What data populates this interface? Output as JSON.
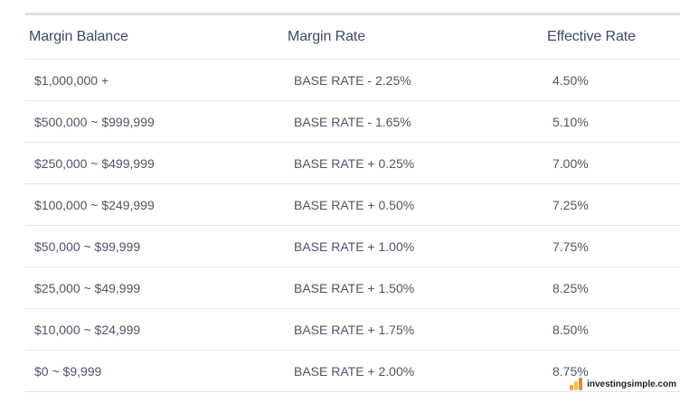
{
  "table": {
    "headers": [
      "Margin Balance",
      "Margin Rate",
      "Effective Rate"
    ],
    "rows": [
      {
        "balance": "$1,000,000 +",
        "margin_rate": "BASE RATE - 2.25%",
        "effective_rate": "4.50%"
      },
      {
        "balance": "$500,000 ~ $999,999",
        "margin_rate": "BASE RATE - 1.65%",
        "effective_rate": "5.10%"
      },
      {
        "balance": "$250,000 ~ $499,999",
        "margin_rate": "BASE RATE + 0.25%",
        "effective_rate": "7.00%"
      },
      {
        "balance": "$100,000 ~ $249,999",
        "margin_rate": "BASE RATE + 0.50%",
        "effective_rate": "7.25%"
      },
      {
        "balance": "$50,000 ~ $99,999",
        "margin_rate": "BASE RATE + 1.00%",
        "effective_rate": "7.75%"
      },
      {
        "balance": "$25,000 ~ $49,999",
        "margin_rate": "BASE RATE + 1.50%",
        "effective_rate": "8.25%"
      },
      {
        "balance": "$10,000 ~ $24,999",
        "margin_rate": "BASE RATE + 1.75%",
        "effective_rate": "8.50%"
      },
      {
        "balance": "$0 ~ $9,999",
        "margin_rate": "BASE RATE + 2.00%",
        "effective_rate": "8.75%"
      }
    ]
  },
  "watermark": {
    "text": "investingsimple.com",
    "icon": "bar-logo-icon"
  },
  "colors": {
    "header_text": "#3b4b66",
    "body_text": "#4d5566",
    "divider": "#e4e5ea",
    "top_border": "#dfe1e8"
  }
}
